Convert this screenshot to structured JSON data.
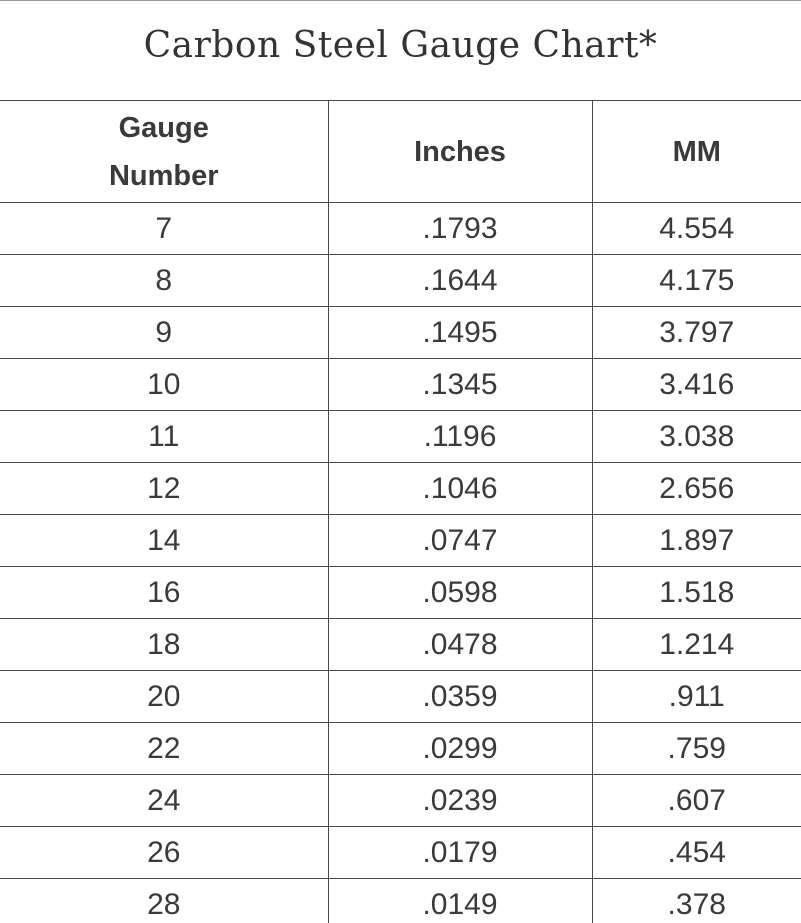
{
  "chart_data": {
    "type": "table",
    "title": "Carbon Steel Gauge Chart*",
    "columns": [
      "Gauge Number",
      "Inches",
      "MM"
    ],
    "rows": [
      [
        "7",
        ".1793",
        "4.554"
      ],
      [
        "8",
        ".1644",
        "4.175"
      ],
      [
        "9",
        ".1495",
        "3.797"
      ],
      [
        "10",
        ".1345",
        "3.416"
      ],
      [
        "11",
        ".1196",
        "3.038"
      ],
      [
        "12",
        ".1046",
        "2.656"
      ],
      [
        "14",
        ".0747",
        "1.897"
      ],
      [
        "16",
        ".0598",
        "1.518"
      ],
      [
        "18",
        ".0478",
        "1.214"
      ],
      [
        "20",
        ".0359",
        ".911"
      ],
      [
        "22",
        ".0299",
        ".759"
      ],
      [
        "24",
        ".0239",
        ".607"
      ],
      [
        "26",
        ".0179",
        ".454"
      ],
      [
        "28",
        ".0149",
        ".378"
      ]
    ]
  }
}
